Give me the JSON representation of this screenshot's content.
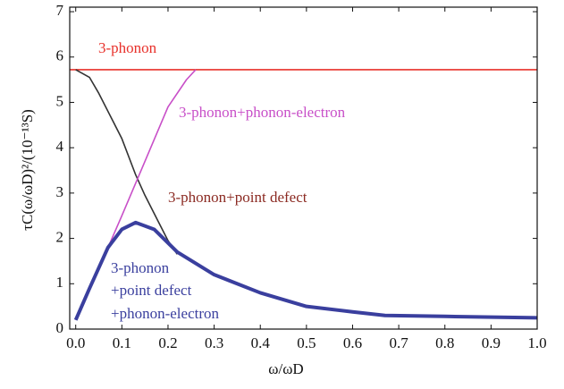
{
  "chart_data": {
    "type": "line",
    "x_label": "ω/ωD",
    "y_label": "τC(ω/ωD)²/(10⁻¹³S)",
    "xlim": [
      -0.013,
      1.0
    ],
    "ylim": [
      0,
      7.1
    ],
    "xticks": [
      {
        "value": 0,
        "label": "0.0"
      },
      {
        "value": 0.1,
        "label": "0.1"
      },
      {
        "value": 0.2,
        "label": "0.2"
      },
      {
        "value": 0.3,
        "label": "0.3"
      },
      {
        "value": 0.4,
        "label": "0.4"
      },
      {
        "value": 0.5,
        "label": "0.5"
      },
      {
        "value": 0.6,
        "label": "0.6"
      },
      {
        "value": 0.7,
        "label": "0.7"
      },
      {
        "value": 0.8,
        "label": "0.8"
      },
      {
        "value": 0.9,
        "label": "0.9"
      },
      {
        "value": 1.0,
        "label": "1.0"
      }
    ],
    "yticks": [
      0,
      1,
      2,
      3,
      4,
      5,
      6,
      7
    ],
    "series": [
      {
        "name": "3-phonon",
        "color": "#e8302a",
        "width": 1.6,
        "x": [
          -0.013,
          1.0
        ],
        "values": [
          5.72,
          5.72
        ]
      },
      {
        "name": "3-phonon+point defect",
        "color": "#333333",
        "width": 1.6,
        "x": [
          0,
          0.03,
          0.05,
          0.08,
          0.1,
          0.13,
          0.15,
          0.18,
          0.2,
          0.22
        ],
        "values": [
          5.72,
          5.55,
          5.2,
          4.6,
          4.2,
          3.4,
          2.95,
          2.35,
          1.95,
          1.65
        ]
      },
      {
        "name": "3-phonon+phonon-electron",
        "color": "#c84fc8",
        "width": 1.6,
        "x": [
          0,
          0.07,
          0.1,
          0.15,
          0.2,
          0.24,
          0.26
        ],
        "values": [
          0.2,
          1.8,
          2.5,
          3.7,
          4.9,
          5.5,
          5.72
        ]
      },
      {
        "name": "3-phonon +point defect +phonon-electron",
        "color": "#3a3f9e",
        "width": 4,
        "x": [
          0,
          0.03,
          0.07,
          0.1,
          0.13,
          0.17,
          0.22,
          0.3,
          0.4,
          0.5,
          0.6,
          0.67,
          0.8,
          1.0
        ],
        "values": [
          0.2,
          0.9,
          1.8,
          2.2,
          2.35,
          2.2,
          1.7,
          1.2,
          0.8,
          0.5,
          0.38,
          0.3,
          0.28,
          0.25
        ]
      }
    ],
    "annotations": [
      {
        "text": "3-phonon",
        "color": "#e8302a"
      },
      {
        "text": "3-phonon+phonon-electron",
        "color": "#c84fc8"
      },
      {
        "text": "3-phonon+point defect",
        "color": "#8b2a22"
      },
      {
        "text": "3-phonon",
        "color": "#3a3f9e"
      },
      {
        "text": "+point defect",
        "color": "#3a3f9e"
      },
      {
        "text": "+phonon-electron",
        "color": "#3a3f9e"
      }
    ]
  }
}
